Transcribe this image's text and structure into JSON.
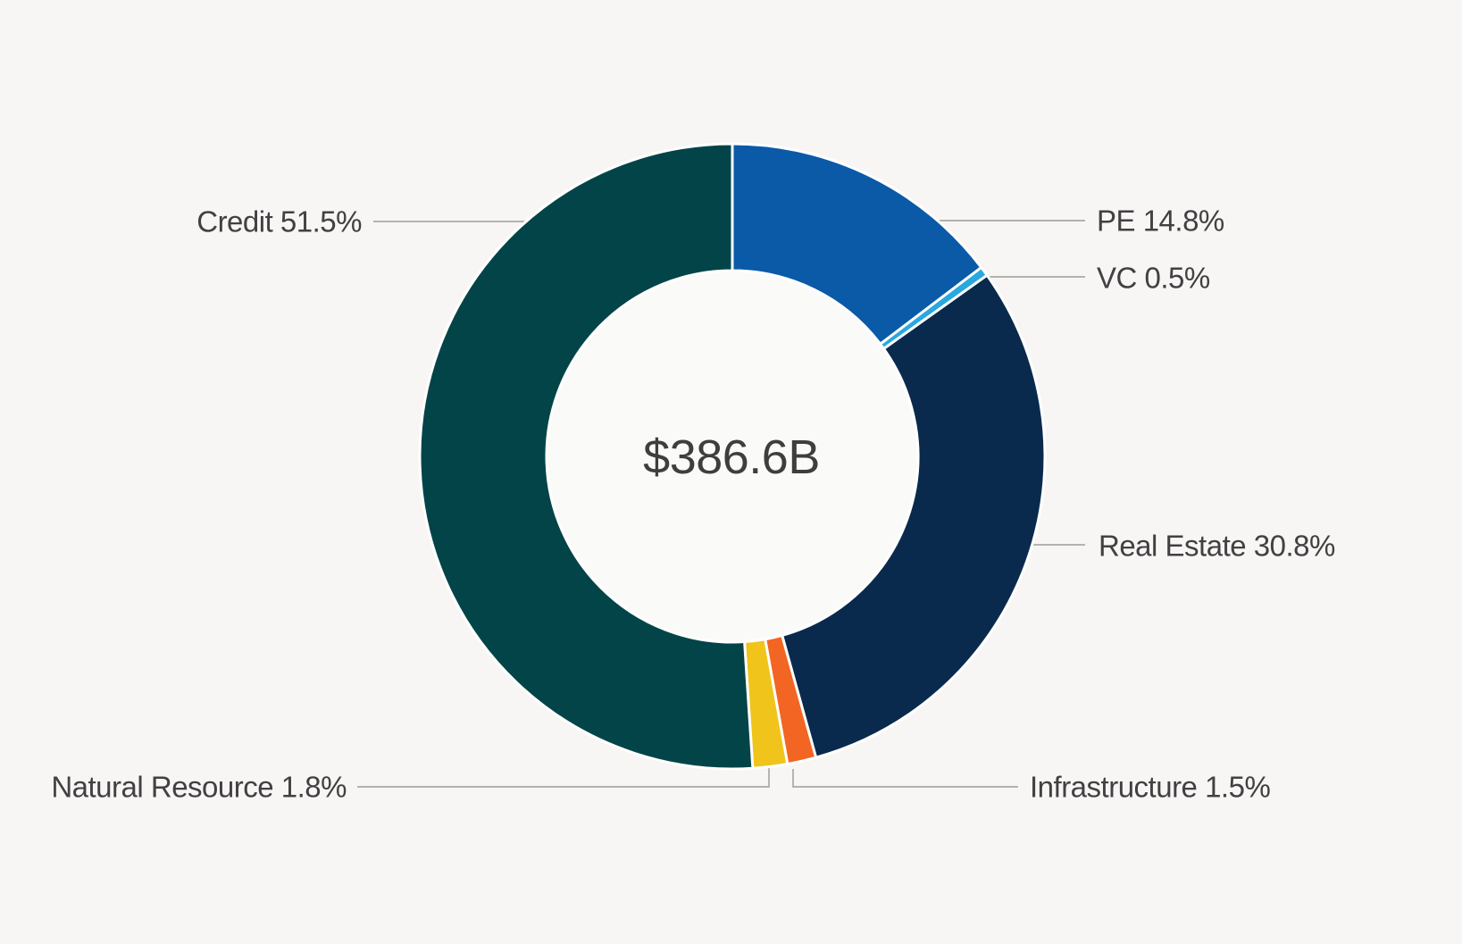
{
  "chart_data": {
    "type": "pie",
    "subtype": "donut",
    "title": "",
    "center_label": "$386.6B",
    "direction": "clockwise",
    "start_angle_deg": 0,
    "legend_position": "callout-labels",
    "slices": [
      {
        "name": "PE",
        "value_pct": 14.8,
        "label": "PE 14.8%",
        "color": "#0a5aa8"
      },
      {
        "name": "VC",
        "value_pct": 0.5,
        "label": "VC 0.5%",
        "color": "#29a8e0"
      },
      {
        "name": "Real Estate",
        "value_pct": 30.8,
        "label": "Real Estate 30.8%",
        "color": "#0a2a4d"
      },
      {
        "name": "Infrastructure",
        "value_pct": 1.5,
        "label": "Infrastructure 1.5%",
        "color": "#f26522"
      },
      {
        "name": "Natural Resource",
        "value_pct": 1.8,
        "label": "Natural Resource 1.8%",
        "color": "#f0c41a"
      },
      {
        "name": "Credit",
        "value_pct": 51.5,
        "label": "Credit 51.5%",
        "color": "#034448"
      }
    ],
    "styles": {
      "background": "#f7f6f4",
      "hole_fill": "#fafaf9",
      "label_color": "#414042",
      "center_label_color": "#3e3e3d",
      "leader_line_color": "#a8a8a6",
      "slice_separator_color": "#ffffff"
    }
  }
}
